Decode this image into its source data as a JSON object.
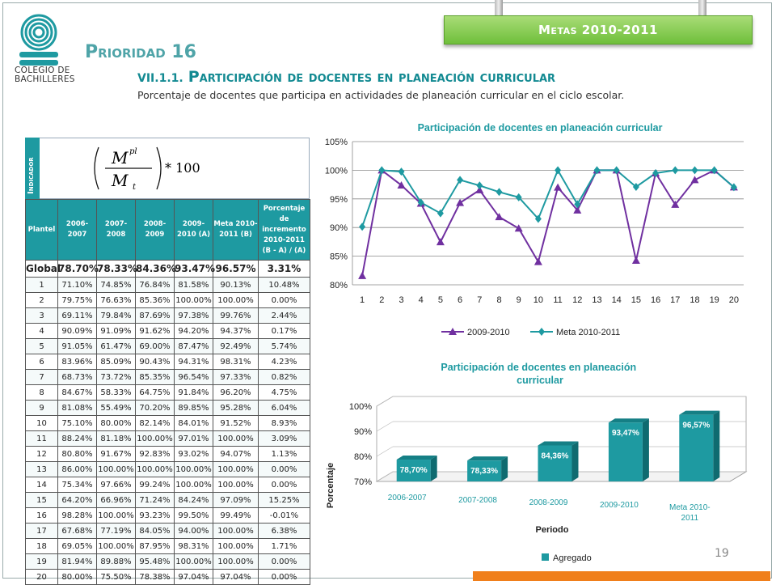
{
  "header": {
    "logo_line1": "COLEGIO DE",
    "logo_line2": "BACHILLERES",
    "badge": "Metas 2010-2011",
    "priority": "Prioridad 16",
    "section_num": "VII.1.1.",
    "section_title": "Participación de docentes en planeación curricular",
    "subtitle": "Porcentaje de docentes que participa en actividades de planeación curricular en el ciclo escolar."
  },
  "indicator": {
    "label": "Indicador",
    "formula_num": "M",
    "formula_num_sup": "pl",
    "formula_den": "M",
    "formula_den_sub": "t",
    "formula_mult": "* 100"
  },
  "table": {
    "headers": [
      "Plantel",
      "2006-2007",
      "2007-2008",
      "2008-2009",
      "2009-2010 (A)",
      "Meta 2010-2011 (B)",
      "Porcentaje de incremento 2010-2011 (B - A) / (A)"
    ],
    "global": [
      "Global",
      "78.70%",
      "78.33%",
      "84.36%",
      "93.47%",
      "96.57%",
      "3.31%"
    ],
    "rows": [
      [
        "1",
        "71.10%",
        "74.85%",
        "76.84%",
        "81.58%",
        "90.13%",
        "10.48%"
      ],
      [
        "2",
        "79.75%",
        "76.63%",
        "85.36%",
        "100.00%",
        "100.00%",
        "0.00%"
      ],
      [
        "3",
        "69.11%",
        "79.84%",
        "87.69%",
        "97.38%",
        "99.76%",
        "2.44%"
      ],
      [
        "4",
        "90.09%",
        "91.09%",
        "91.62%",
        "94.20%",
        "94.37%",
        "0.17%"
      ],
      [
        "5",
        "91.05%",
        "61.47%",
        "69.00%",
        "87.47%",
        "92.49%",
        "5.74%"
      ],
      [
        "6",
        "83.96%",
        "85.09%",
        "90.43%",
        "94.31%",
        "98.31%",
        "4.23%"
      ],
      [
        "7",
        "68.73%",
        "73.72%",
        "85.35%",
        "96.54%",
        "97.33%",
        "0.82%"
      ],
      [
        "8",
        "84.67%",
        "58.33%",
        "64.75%",
        "91.84%",
        "96.20%",
        "4.75%"
      ],
      [
        "9",
        "81.08%",
        "55.49%",
        "70.20%",
        "89.85%",
        "95.28%",
        "6.04%"
      ],
      [
        "10",
        "75.10%",
        "80.00%",
        "82.14%",
        "84.01%",
        "91.52%",
        "8.93%"
      ],
      [
        "11",
        "88.24%",
        "81.18%",
        "100.00%",
        "97.01%",
        "100.00%",
        "3.09%"
      ],
      [
        "12",
        "80.80%",
        "91.67%",
        "92.83%",
        "93.02%",
        "94.07%",
        "1.13%"
      ],
      [
        "13",
        "86.00%",
        "100.00%",
        "100.00%",
        "100.00%",
        "100.00%",
        "0.00%"
      ],
      [
        "14",
        "75.34%",
        "97.66%",
        "99.24%",
        "100.00%",
        "100.00%",
        "0.00%"
      ],
      [
        "15",
        "64.20%",
        "66.96%",
        "71.24%",
        "84.24%",
        "97.09%",
        "15.25%"
      ],
      [
        "16",
        "98.28%",
        "100.00%",
        "93.23%",
        "99.50%",
        "99.49%",
        "-0.01%"
      ],
      [
        "17",
        "67.68%",
        "77.19%",
        "84.05%",
        "94.00%",
        "100.00%",
        "6.38%"
      ],
      [
        "18",
        "69.05%",
        "100.00%",
        "87.95%",
        "98.31%",
        "100.00%",
        "1.71%"
      ],
      [
        "19",
        "81.94%",
        "89.88%",
        "95.48%",
        "100.00%",
        "100.00%",
        "0.00%"
      ],
      [
        "20",
        "80.00%",
        "75.50%",
        "78.38%",
        "97.04%",
        "97.04%",
        "0.00%"
      ]
    ]
  },
  "page_number": "19",
  "colors": {
    "teal": "#1e9aa1",
    "purple": "#7030a0",
    "green": "#6fbf3b",
    "orange": "#f07f1b"
  },
  "chart_data": [
    {
      "type": "line",
      "title": "Participación de docentes en planeación curricular",
      "x": [
        1,
        2,
        3,
        4,
        5,
        6,
        7,
        8,
        9,
        10,
        11,
        12,
        13,
        14,
        15,
        16,
        17,
        18,
        19,
        20
      ],
      "x_labels": [
        "1",
        "2",
        "3",
        "4",
        "5",
        "6",
        "7",
        "8",
        "9",
        "10",
        "11",
        "12",
        "13",
        "14",
        "15",
        "16",
        "17",
        "18",
        "19",
        "20"
      ],
      "ylim": [
        80,
        105
      ],
      "y_ticks": [
        "80%",
        "85%",
        "90%",
        "95%",
        "100%",
        "105%"
      ],
      "grid": true,
      "legend": "bottom",
      "series": [
        {
          "name": "2009-2010",
          "color": "#7030a0",
          "marker": "triangle",
          "values": [
            81.58,
            100.0,
            97.38,
            94.2,
            87.47,
            94.31,
            96.54,
            91.84,
            89.85,
            84.01,
            97.01,
            93.02,
            100.0,
            100.0,
            84.24,
            99.5,
            94.0,
            98.31,
            100.0,
            97.04
          ]
        },
        {
          "name": "Meta 2010-2011",
          "color": "#1e9aa1",
          "marker": "diamond",
          "values": [
            90.13,
            100.0,
            99.76,
            94.37,
            92.49,
            98.31,
            97.33,
            96.2,
            95.28,
            91.52,
            100.0,
            94.07,
            100.0,
            100.0,
            97.09,
            99.49,
            100.0,
            100.0,
            100.0,
            97.04
          ]
        }
      ]
    },
    {
      "type": "bar",
      "title": "Participación de docentes en planeación curricular",
      "categories": [
        "2006-2007",
        "2007-2008",
        "2008-2009",
        "2009-2010",
        "Meta 2010-2011"
      ],
      "values": [
        78.7,
        78.33,
        84.36,
        93.47,
        96.57
      ],
      "value_labels": [
        "78,70%",
        "78,33%",
        "84,36%",
        "93,47%",
        "96,57%"
      ],
      "ylim": [
        70,
        100
      ],
      "y_ticks": [
        "70%",
        "80%",
        "90%",
        "100%"
      ],
      "xlabel": "Periodo",
      "ylabel": "Porcentaje",
      "legend": "bottom",
      "series_name": "Agregado",
      "color": "#1e9aa1"
    }
  ]
}
